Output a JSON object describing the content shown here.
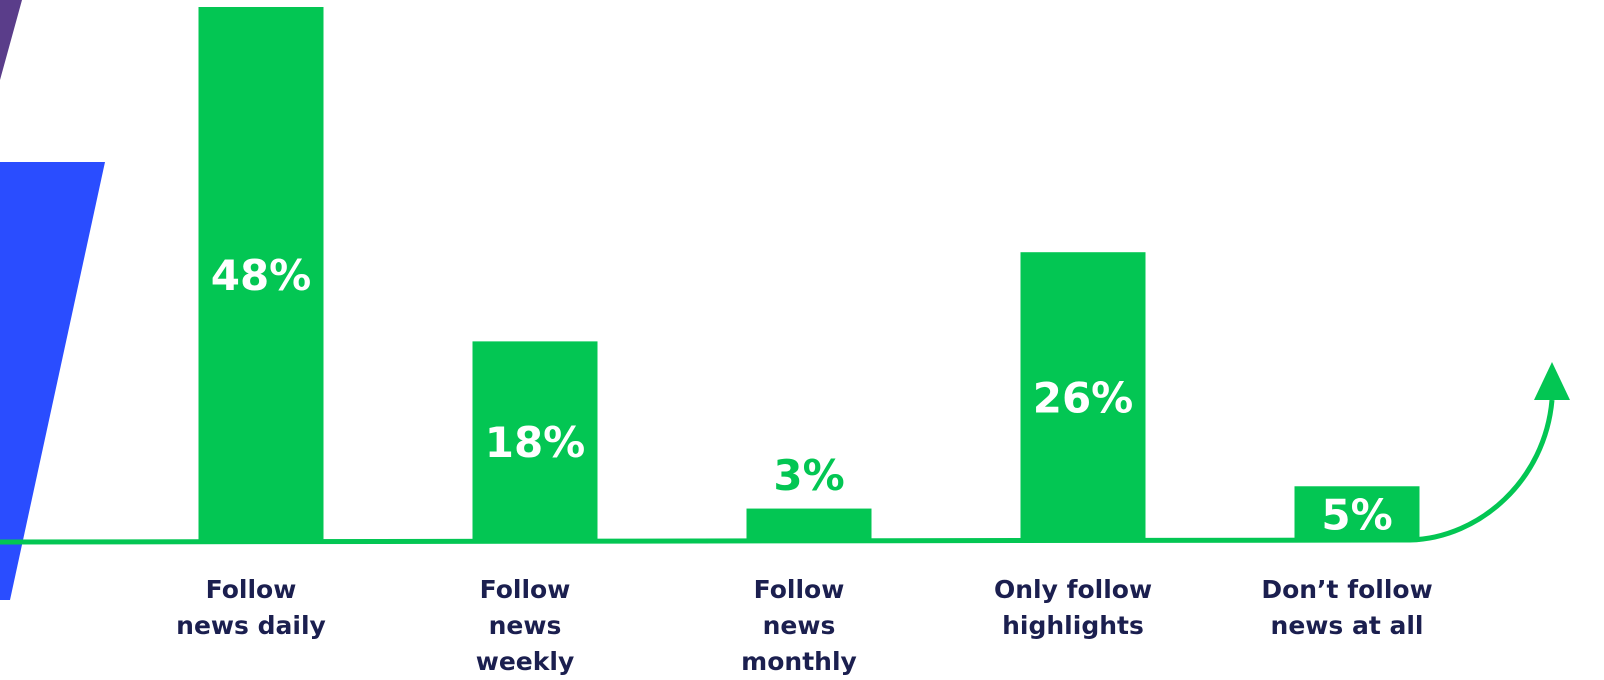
{
  "chart_data": {
    "type": "bar",
    "categories": [
      "Follow news daily",
      "Follow news weekly",
      "Follow news monthly",
      "Only follow highlights",
      "Don’t follow news at all"
    ],
    "values": [
      48,
      18,
      3,
      26,
      5
    ],
    "value_labels": [
      "48%",
      "18%",
      "3%",
      "26%",
      "5%"
    ],
    "color": "#03c653"
  }
}
